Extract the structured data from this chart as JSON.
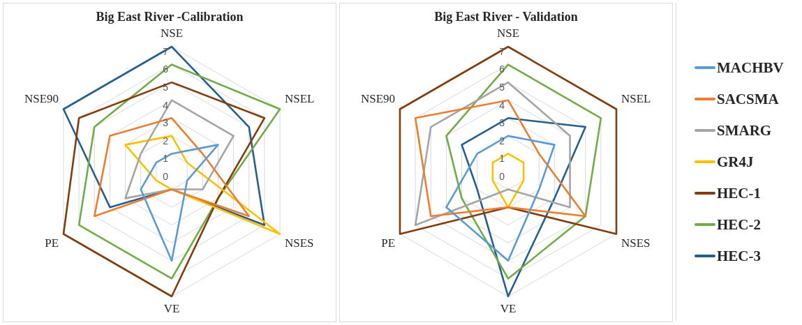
{
  "chart_data": [
    {
      "type": "radar",
      "title": "Big East River -Calibration",
      "categories": [
        "NSE",
        "NSEL",
        "NSES",
        "VE",
        "PE",
        "NSE90"
      ],
      "ylim": [
        0,
        7
      ],
      "yticks": [
        0,
        1,
        2,
        3,
        4,
        5,
        6,
        7
      ],
      "grid": true,
      "series": [
        {
          "color": "#5b9bd5",
          "values": [
            1,
            3,
            1,
            5,
            2,
            1
          ]
        },
        {
          "color": "#ed7d31",
          "values": [
            3,
            2,
            5,
            1,
            5,
            4
          ]
        },
        {
          "color": "#a5a5a5",
          "values": [
            4,
            4,
            2,
            1,
            3,
            2
          ]
        },
        {
          "color": "#ffc000",
          "values": [
            2,
            1,
            7,
            1,
            1,
            3
          ]
        },
        {
          "color": "#843c0c",
          "values": [
            5,
            6,
            3,
            7,
            7,
            6
          ]
        },
        {
          "color": "#70ad47",
          "values": [
            6,
            7,
            3,
            6,
            6,
            5
          ]
        },
        {
          "color": "#255e91",
          "values": [
            7,
            5,
            6,
            1,
            4,
            7
          ]
        }
      ]
    },
    {
      "type": "radar",
      "title": "Big East River - Validation",
      "categories": [
        "NSE",
        "NSEL",
        "NSES",
        "VE",
        "PE",
        "NSE90"
      ],
      "ylim": [
        0,
        7
      ],
      "yticks": [
        0,
        1,
        2,
        3,
        4,
        5,
        6,
        7
      ],
      "grid": true,
      "legend": "right",
      "series": [
        {
          "name": "MACHBV",
          "color": "#5b9bd5",
          "values": [
            2,
            3,
            2,
            5,
            4,
            2
          ]
        },
        {
          "name": "SACSMA",
          "color": "#ed7d31",
          "values": [
            4,
            2,
            5,
            2,
            5,
            6
          ]
        },
        {
          "name": "SMARG",
          "color": "#a5a5a5",
          "values": [
            5,
            4,
            4,
            1,
            6,
            5
          ]
        },
        {
          "name": "GR4J",
          "color": "#ffc000",
          "values": [
            1,
            1,
            1,
            2,
            1,
            1
          ]
        },
        {
          "name": "HEC-1",
          "color": "#843c0c",
          "values": [
            7,
            7,
            7,
            2,
            7,
            7
          ]
        },
        {
          "name": "HEC-2",
          "color": "#70ad47",
          "values": [
            6,
            6,
            5,
            6,
            3,
            4
          ]
        },
        {
          "name": "HEC-3",
          "color": "#255e91",
          "values": [
            3,
            5,
            3,
            7,
            2,
            3
          ]
        }
      ]
    }
  ]
}
